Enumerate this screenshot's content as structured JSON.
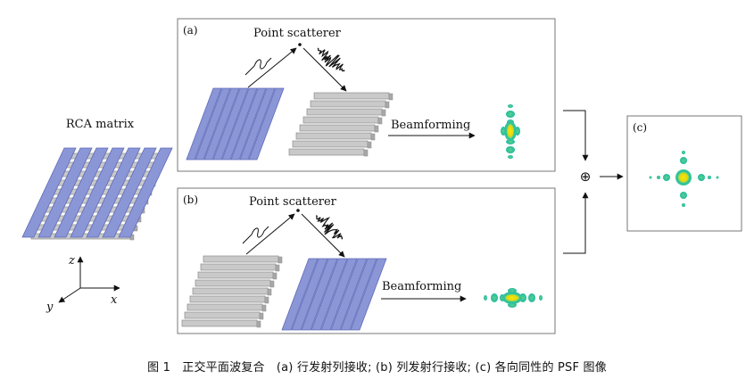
{
  "labels": {
    "rca_matrix": "RCA matrix",
    "panel_a": "(a)",
    "panel_b": "(b)",
    "panel_c": "(c)",
    "point_scatterer_a": "Point scatterer",
    "point_scatterer_b": "Point scatterer",
    "beamforming_a": "Beamforming",
    "beamforming_b": "Beamforming",
    "compound_symbol": "⊕"
  },
  "axes": {
    "z": "z",
    "x": "x",
    "y": "y"
  },
  "caption": "图 1　正交平面波复合　(a) 行发射列接收; (b) 列发射行接收; (c) 各向同性的 PSF 图像",
  "colors": {
    "row_element": "#8a96d6",
    "row_element_dark": "#5e6ab8",
    "column_element": "#c9c9c9",
    "column_element_dark": "#8c8c8c",
    "psf_outer": "#2ec4a0",
    "psf_mid": "#7fd66a",
    "psf_core": "#f2e20c",
    "panel_border": "#777777"
  },
  "icons": {
    "transmit": "wave-pulse-icon",
    "receive": "echo-signal-icon"
  }
}
